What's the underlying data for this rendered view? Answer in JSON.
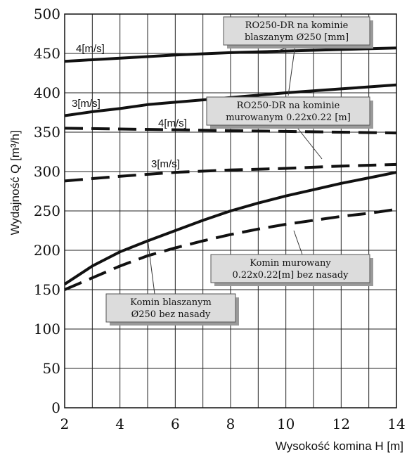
{
  "chart_data": {
    "type": "line",
    "xlabel": "Wysokość komina H [m]",
    "ylabel": "Wydajność Q [m³/h]",
    "xlim": [
      2,
      14
    ],
    "ylim": [
      0,
      500
    ],
    "xticks": [
      2,
      4,
      6,
      8,
      10,
      12,
      14
    ],
    "yticks": [
      0,
      50,
      100,
      150,
      200,
      250,
      300,
      350,
      400,
      450,
      500
    ],
    "grid": true,
    "series": [
      {
        "name": "4[m/s]",
        "group": "RO250-DR na kominie blaszanym Ø250 [mm]",
        "style": "solid",
        "x": [
          2,
          4,
          6,
          8,
          10,
          12,
          14
        ],
        "y": [
          440,
          444,
          448,
          451,
          453,
          455,
          457
        ]
      },
      {
        "name": "3[m/s]",
        "group": "RO250-DR na kominie blaszanym Ø250 [mm]",
        "style": "solid",
        "x": [
          2,
          3,
          4,
          5,
          6,
          8,
          10,
          12,
          14
        ],
        "y": [
          371,
          376,
          380,
          385,
          388,
          394,
          400,
          405,
          410
        ]
      },
      {
        "name": "4[m/s]",
        "group": "RO250-DR na kominie murowanym 0.22x0.22 [m]",
        "style": "dashed",
        "x": [
          2,
          4,
          6,
          8,
          10,
          12,
          14
        ],
        "y": [
          355,
          354,
          353,
          352,
          351,
          350,
          349
        ]
      },
      {
        "name": "3[m/s]",
        "group": "RO250-DR na kominie murowanym 0.22x0.22 [m]",
        "style": "dashed",
        "x": [
          2,
          4,
          6,
          8,
          10,
          12,
          14
        ],
        "y": [
          288,
          294,
          299,
          302,
          304,
          307,
          309
        ]
      },
      {
        "name": "",
        "group": "Komin blaszanym Ø250 bez nasady",
        "style": "solid",
        "x": [
          2,
          3,
          4,
          5,
          6,
          7,
          8,
          9,
          10,
          11,
          12,
          13,
          14
        ],
        "y": [
          157,
          180,
          198,
          212,
          225,
          238,
          250,
          260,
          269,
          277,
          285,
          292,
          299
        ]
      },
      {
        "name": "",
        "group": "Komin murowany 0.22x0.22[m] bez nasady",
        "style": "dashed",
        "x": [
          2,
          3,
          4,
          5,
          6,
          7,
          8,
          9,
          10,
          11,
          12,
          13,
          14
        ],
        "y": [
          150,
          165,
          180,
          193,
          203,
          212,
          220,
          227,
          233,
          238,
          243,
          247,
          252
        ]
      }
    ],
    "annotations": [
      "RO250-DR na kominie blaszanym Ø250 [mm]",
      "RO250-DR na kominie murowanym 0.22x0.22 [m]",
      "Komin murowany 0.22x0.22[m] bez nasady",
      "Komin blaszanym Ø250 bez nasady"
    ],
    "annotation_lines": [
      [
        "RO250-DR na kominie",
        "blaszanym Ø250 [mm]"
      ],
      [
        "RO250-DR na kominie",
        "murowanym 0.22x0.22 [m]"
      ],
      [
        "Komin murowany",
        "0.22x0.22[m] bez nasady"
      ],
      [
        "Komin blaszanym",
        "Ø250 bez nasady"
      ]
    ],
    "colors": {
      "line": "#111111",
      "box_fill": "#dcdcdc",
      "box_shadow": "#9a9a9a"
    }
  }
}
